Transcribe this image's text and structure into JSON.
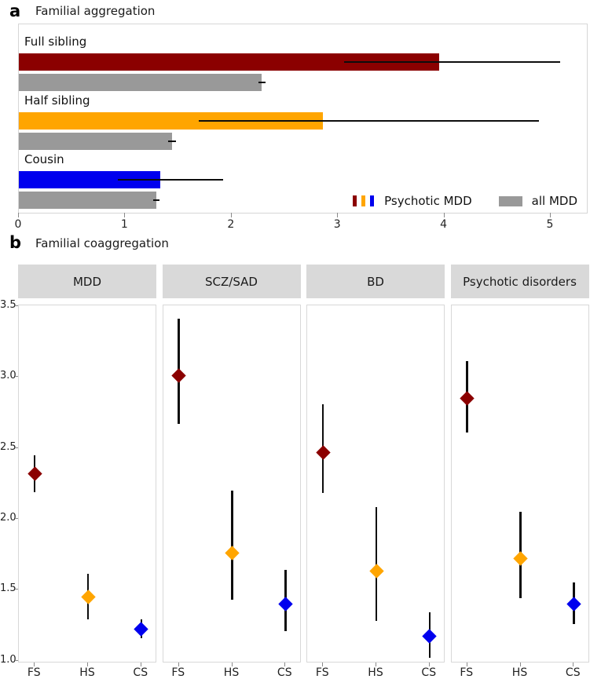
{
  "figure": {
    "panel_a": {
      "label": "a",
      "title": "Familial aggregation"
    },
    "panel_b": {
      "label": "b",
      "title": "Familial coaggregation"
    },
    "legend": {
      "psychotic_label": "Psychotic MDD",
      "all_label": "all MDD"
    }
  },
  "colors": {
    "psychotic_fs": "#8B0000",
    "psychotic_hs": "#FFA500",
    "psychotic_cs": "#0000EE",
    "all_mdd_gray": "#999999",
    "strip_bg": "#D9D9D9",
    "error_bar": "#0D0D0D"
  },
  "chart_data": [
    {
      "id": "familial_aggregation",
      "type": "bar",
      "orientation": "horizontal",
      "title": "Familial aggregation",
      "xlim": [
        0,
        5.34
      ],
      "x_ticks": [
        0,
        1,
        2,
        3,
        4,
        5
      ],
      "series_legend": [
        "Psychotic MDD",
        "all MDD"
      ],
      "groups": [
        {
          "label": "Full sibling",
          "psychotic_mdd": {
            "est": 3.95,
            "lo": 3.06,
            "hi": 5.09,
            "color": "#8B0000"
          },
          "all_mdd": {
            "est": 2.28,
            "lo": 2.25,
            "hi": 2.32,
            "color": "#999999"
          }
        },
        {
          "label": "Half sibling",
          "psychotic_mdd": {
            "est": 2.86,
            "lo": 1.69,
            "hi": 4.89,
            "color": "#FFA500"
          },
          "all_mdd": {
            "est": 1.44,
            "lo": 1.4,
            "hi": 1.48,
            "color": "#999999"
          }
        },
        {
          "label": "Cousin",
          "psychotic_mdd": {
            "est": 1.33,
            "lo": 0.93,
            "hi": 1.92,
            "color": "#0000EE"
          },
          "all_mdd": {
            "est": 1.29,
            "lo": 1.26,
            "hi": 1.32,
            "color": "#999999"
          }
        }
      ]
    },
    {
      "id": "familial_coaggregation",
      "type": "scatter",
      "title": "Familial coaggregation",
      "ylim": [
        1.0,
        3.5
      ],
      "y_ticks": [
        3.5,
        3.0,
        2.5,
        2.0,
        1.5,
        1.0
      ],
      "categories": [
        "FS",
        "HS",
        "CS"
      ],
      "facets": [
        {
          "label": "MDD",
          "points": [
            {
              "category": "FS",
              "est": 2.32,
              "lo": 2.19,
              "hi": 2.45,
              "color": "#8B0000"
            },
            {
              "category": "HS",
              "est": 1.45,
              "lo": 1.29,
              "hi": 1.61,
              "color": "#FFA500"
            },
            {
              "category": "CS",
              "est": 1.22,
              "lo": 1.16,
              "hi": 1.29,
              "color": "#0000EE"
            }
          ]
        },
        {
          "label": "SCZ/SAD",
          "points": [
            {
              "category": "FS",
              "est": 3.01,
              "lo": 2.67,
              "hi": 3.41,
              "color": "#8B0000"
            },
            {
              "category": "HS",
              "est": 1.76,
              "lo": 1.43,
              "hi": 2.2,
              "color": "#FFA500"
            },
            {
              "category": "CS",
              "est": 1.4,
              "lo": 1.21,
              "hi": 1.64,
              "color": "#0000EE"
            }
          ]
        },
        {
          "label": "BD",
          "points": [
            {
              "category": "FS",
              "est": 2.47,
              "lo": 2.18,
              "hi": 2.81,
              "color": "#8B0000"
            },
            {
              "category": "HS",
              "est": 1.63,
              "lo": 1.28,
              "hi": 2.08,
              "color": "#FFA500"
            },
            {
              "category": "CS",
              "est": 1.17,
              "lo": 1.02,
              "hi": 1.34,
              "color": "#0000EE"
            }
          ]
        },
        {
          "label": "Psychotic disorders",
          "points": [
            {
              "category": "FS",
              "est": 2.85,
              "lo": 2.61,
              "hi": 3.11,
              "color": "#8B0000"
            },
            {
              "category": "HS",
              "est": 1.72,
              "lo": 1.44,
              "hi": 2.05,
              "color": "#FFA500"
            },
            {
              "category": "CS",
              "est": 1.4,
              "lo": 1.26,
              "hi": 1.55,
              "color": "#0000EE"
            }
          ]
        }
      ]
    }
  ]
}
